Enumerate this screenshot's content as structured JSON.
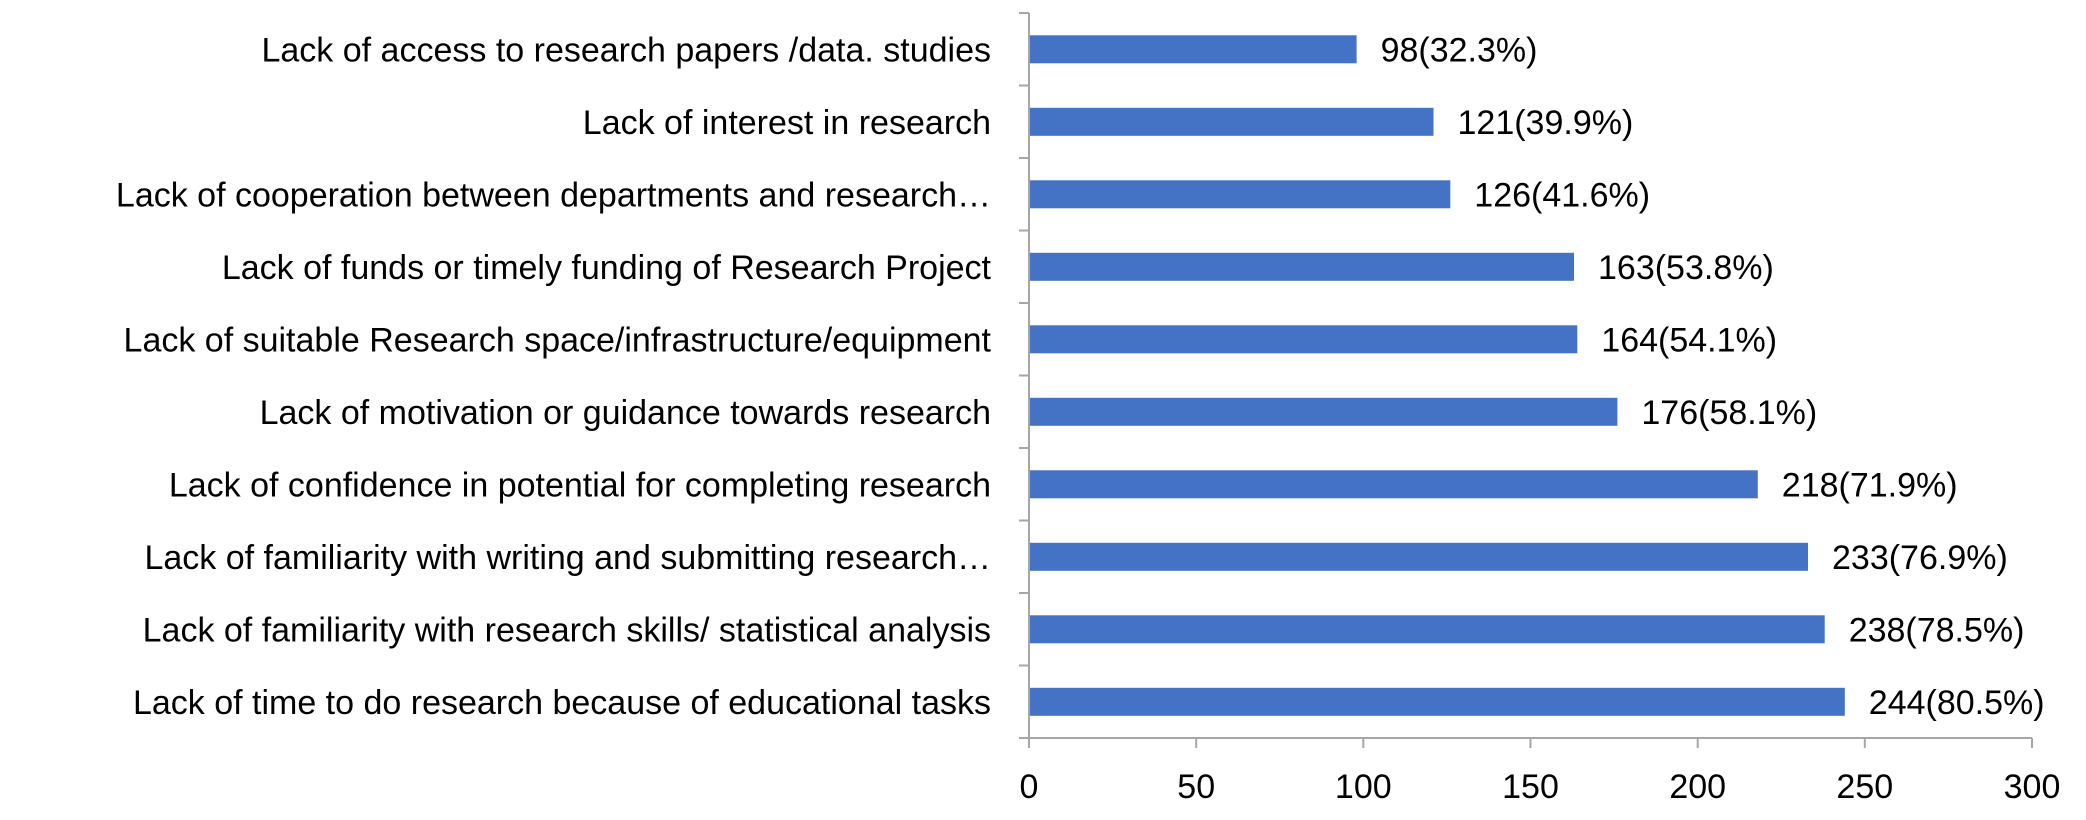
{
  "chart_data": {
    "type": "bar",
    "orientation": "horizontal",
    "categories": [
      "Lack of access to research papers /data. studies",
      "Lack of interest in research",
      "Lack of cooperation between departments and research…",
      "Lack of funds or timely funding of Research Project",
      "Lack of suitable Research space/infrastructure/equipment",
      "Lack of motivation or guidance towards research",
      "Lack of confidence in potential for completing research",
      "Lack of familiarity with writing and submitting research…",
      "Lack of familiarity with research skills/ statistical analysis",
      "Lack of time to do research because of educational tasks"
    ],
    "values": [
      98,
      121,
      126,
      163,
      164,
      176,
      218,
      233,
      238,
      244
    ],
    "data_labels": [
      "98(32.3%)",
      "121(39.9%)",
      "126(41.6%)",
      "163(53.8%)",
      "164(54.1%)",
      "176(58.1%)",
      "218(71.9%)",
      "233(76.9%)",
      "238(78.5%)",
      "244(80.5%)"
    ],
    "xlim": [
      0,
      300
    ],
    "x_ticks": [
      0,
      50,
      100,
      150,
      200,
      250,
      300
    ],
    "x_tick_labels": [
      "0",
      "50",
      "100",
      "150",
      "200",
      "250",
      "300"
    ],
    "title": "",
    "xlabel": "",
    "ylabel": "",
    "bar_color": "#4472C4",
    "axis_color": "#A6A6A6",
    "grid": false,
    "legend": false
  }
}
